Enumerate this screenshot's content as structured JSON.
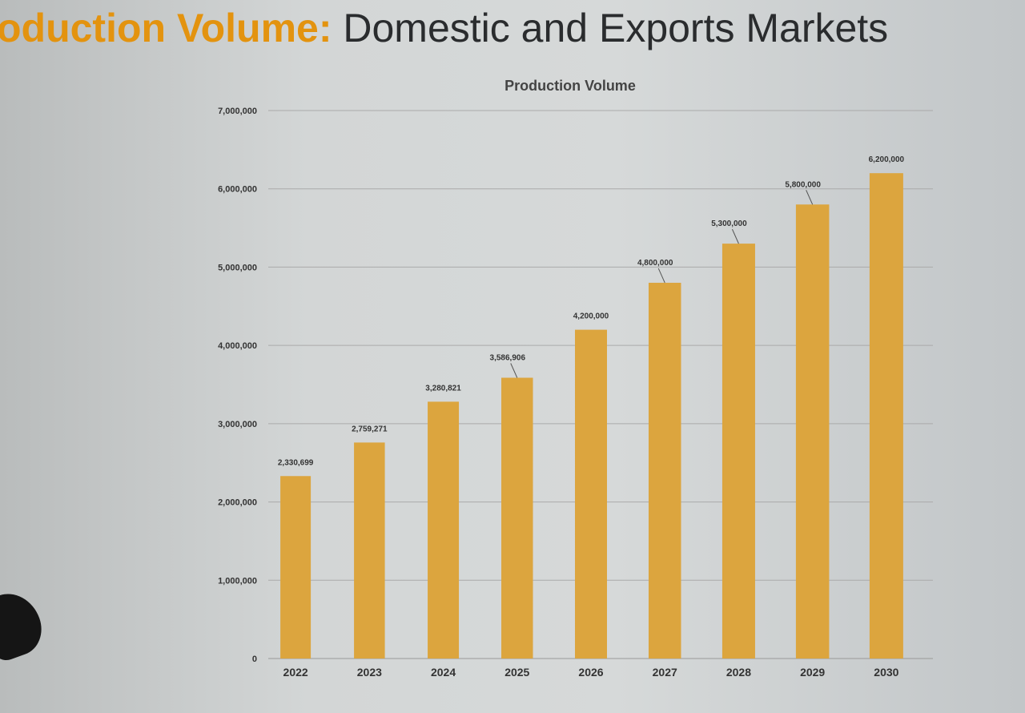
{
  "slide": {
    "title_accent": "oduction Volume:",
    "title_rest": "Domestic and Exports Markets"
  },
  "chart_data": {
    "type": "bar",
    "title": "Production Volume",
    "xlabel": "",
    "ylabel": "",
    "categories": [
      "2022",
      "2023",
      "2024",
      "2025",
      "2026",
      "2027",
      "2028",
      "2029",
      "2030"
    ],
    "values": [
      2330699,
      2759271,
      3280821,
      3586906,
      4200000,
      4800000,
      5300000,
      5800000,
      6200000
    ],
    "data_labels": [
      "2,330,699",
      "2,759,271",
      "3,280,821",
      "3,586,906",
      "4,200,000",
      "4,800,000",
      "5,300,000",
      "5,800,000",
      "6,200,000"
    ],
    "ylim": [
      0,
      7000000
    ],
    "yticks": [
      0,
      1000000,
      2000000,
      3000000,
      4000000,
      5000000,
      6000000,
      7000000
    ],
    "ytick_labels": [
      "0",
      "1,000,000",
      "2,000,000",
      "3,000,000",
      "4,000,000",
      "5,000,000",
      "6,000,000",
      "7,000,000"
    ],
    "grid": true,
    "legend": "none",
    "bar_color": "#dca53e"
  }
}
